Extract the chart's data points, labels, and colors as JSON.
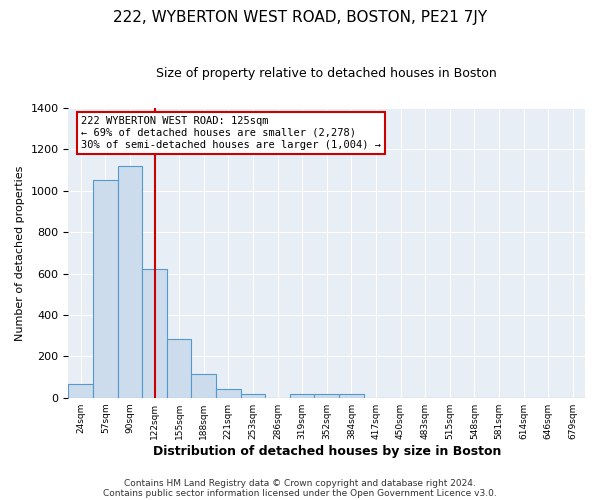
{
  "title": "222, WYBERTON WEST ROAD, BOSTON, PE21 7JY",
  "subtitle": "Size of property relative to detached houses in Boston",
  "xlabel": "Distribution of detached houses by size in Boston",
  "ylabel": "Number of detached properties",
  "footer_lines": [
    "Contains HM Land Registry data © Crown copyright and database right 2024.",
    "Contains public sector information licensed under the Open Government Licence v3.0."
  ],
  "bar_labels": [
    "24sqm",
    "57sqm",
    "90sqm",
    "122sqm",
    "155sqm",
    "188sqm",
    "221sqm",
    "253sqm",
    "286sqm",
    "319sqm",
    "352sqm",
    "384sqm",
    "417sqm",
    "450sqm",
    "483sqm",
    "515sqm",
    "548sqm",
    "581sqm",
    "614sqm",
    "646sqm",
    "679sqm"
  ],
  "bar_values": [
    65,
    1050,
    1120,
    620,
    285,
    115,
    43,
    18,
    0,
    18,
    18,
    18,
    0,
    0,
    0,
    0,
    0,
    0,
    0,
    0,
    0
  ],
  "bar_color": "#ccdcec",
  "bar_edge_color": "#5599cc",
  "vline_x": 3.5,
  "vline_color": "#cc0000",
  "annotation_text": "222 WYBERTON WEST ROAD: 125sqm\n← 69% of detached houses are smaller (2,278)\n30% of semi-detached houses are larger (1,004) →",
  "annotation_box_edgecolor": "#cc0000",
  "annotation_box_facecolor": "#ffffff",
  "ylim": [
    0,
    1400
  ],
  "yticks": [
    0,
    200,
    400,
    600,
    800,
    1000,
    1200,
    1400
  ],
  "bg_color": "#ffffff",
  "plot_bg_color": "#e8eef5",
  "grid_color": "#ffffff",
  "title_fontsize": 11,
  "subtitle_fontsize": 9,
  "footer_fontsize": 6.5
}
